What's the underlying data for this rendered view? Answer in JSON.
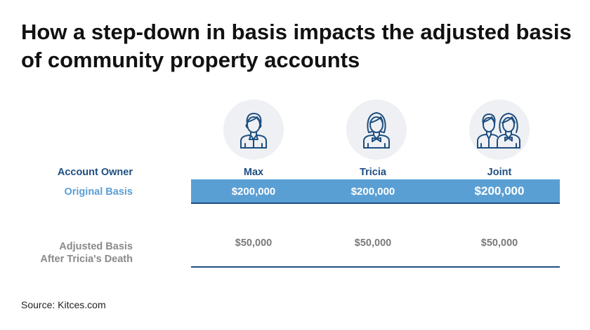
{
  "title": "How a step-down in basis impacts the adjusted basis of community property accounts",
  "colors": {
    "dark_blue": "#1d4e80",
    "light_blue": "#5a9fd4",
    "gray_text": "#8a8a8a",
    "avatar_bg": "#eef0f3"
  },
  "icons": [
    "male-person-icon",
    "female-person-icon",
    "couple-icon"
  ],
  "table": {
    "row_labels": {
      "account_owner": "Account Owner",
      "original_basis": "Original Basis",
      "adjusted_basis_line1": "Adjusted Basis",
      "adjusted_basis_line2": "After Tricia's Death"
    },
    "columns": [
      {
        "owner": "Max",
        "original_basis": "$200,000",
        "adjusted_basis": "$50,000"
      },
      {
        "owner": "Tricia",
        "original_basis": "$200,000",
        "adjusted_basis": "$50,000"
      },
      {
        "owner": "Joint",
        "original_basis": "$200,000",
        "adjusted_basis": "$50,000"
      }
    ]
  },
  "source": "Source: Kitces.com"
}
